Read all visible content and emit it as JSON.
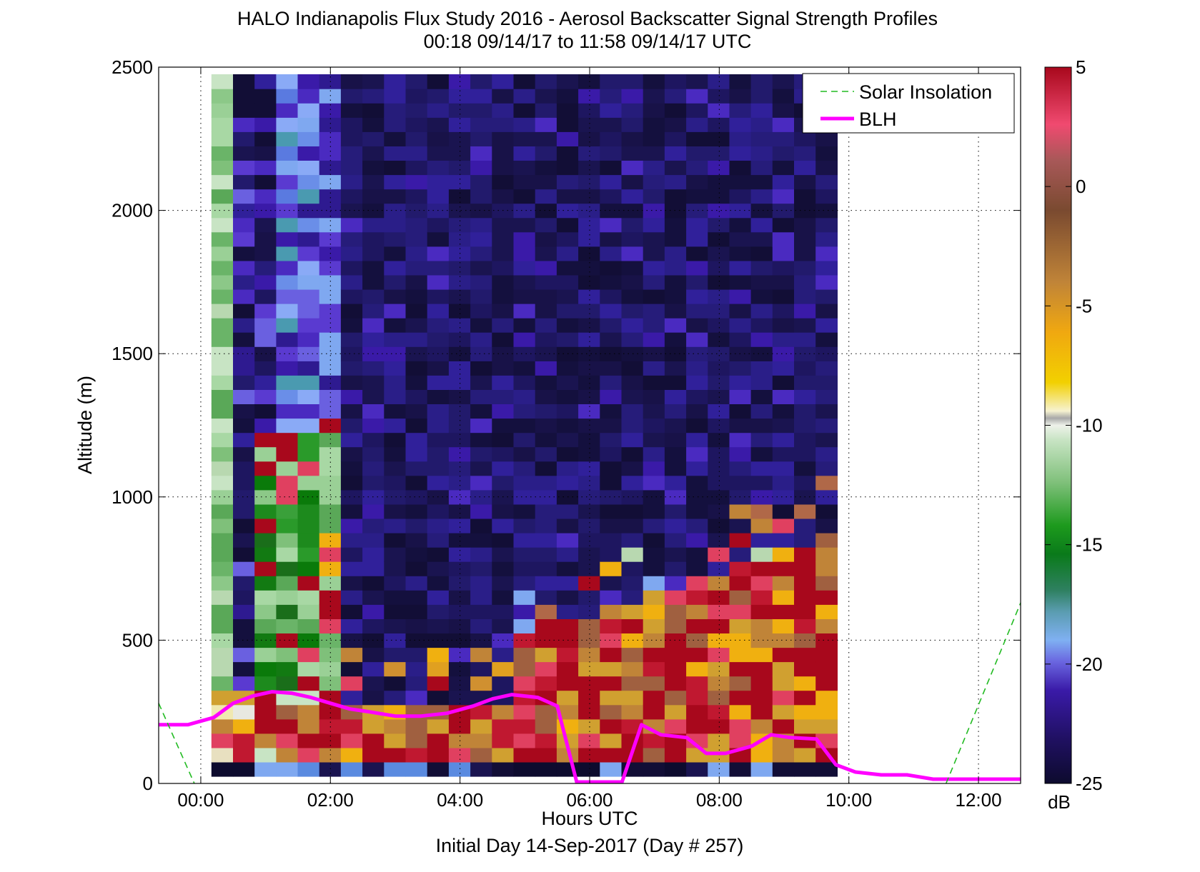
{
  "chart_data": {
    "type": "heatmap",
    "title": "HALO Indianapolis Flux Study 2016 - Aerosol Backscatter Signal Strength Profiles",
    "subtitle": "00:18 09/14/17 to 11:58 09/14/17  UTC",
    "xlabel": "Hours UTC",
    "xlabel2": "Initial Day 14-Sep-2017 (Day # 257)",
    "ylabel": "Altitude (m)",
    "xlim": [
      -0.65,
      12.65
    ],
    "ylim": [
      0,
      2500
    ],
    "x_ticks": [
      0,
      2,
      4,
      6,
      8,
      10,
      12
    ],
    "x_tick_labels": [
      "00:00",
      "02:00",
      "04:00",
      "06:00",
      "08:00",
      "10:00",
      "12:00"
    ],
    "y_ticks": [
      0,
      500,
      1000,
      1500,
      2000,
      2500
    ],
    "y_tick_labels": [
      "0",
      "500",
      "1000",
      "1500",
      "2000",
      "2500"
    ],
    "grid": true,
    "colorbar": {
      "label": "dB",
      "range": [
        -25,
        5
      ],
      "ticks": [
        5,
        0,
        -5,
        -10,
        -15,
        -20,
        -25
      ],
      "tick_labels": [
        "5",
        "0",
        "-5",
        "-10",
        "-15",
        "-20",
        "-25"
      ]
    },
    "legend": {
      "placement": "top-right",
      "entries": [
        "Solar Insolation",
        "BLH"
      ]
    },
    "colors": {
      "blh": "#ff00ff",
      "solar": "#22bb22",
      "background_signal": "#1a1450"
    },
    "heatmap_grid": {
      "x_start": 0.33,
      "x_step": 0.333,
      "columns": 29,
      "y_start": 50,
      "y_step": 50,
      "rows": 49
    },
    "series": [
      {
        "name": "BLH",
        "x": [
          -0.65,
          -0.2,
          0.2,
          0.5,
          0.8,
          1.1,
          1.4,
          1.7,
          2.0,
          2.3,
          2.6,
          3.0,
          3.4,
          3.8,
          4.2,
          4.5,
          4.8,
          5.2,
          5.5,
          5.8,
          6.1,
          6.5,
          6.8,
          7.1,
          7.5,
          7.8,
          8.1,
          8.5,
          8.8,
          9.1,
          9.5,
          9.8,
          10.1,
          10.5,
          10.9,
          11.3,
          11.7,
          12.1,
          12.65
        ],
        "y": [
          205,
          205,
          230,
          280,
          305,
          320,
          315,
          300,
          280,
          260,
          250,
          235,
          235,
          245,
          270,
          295,
          310,
          300,
          270,
          5,
          5,
          5,
          205,
          170,
          160,
          105,
          105,
          130,
          170,
          160,
          155,
          65,
          40,
          30,
          30,
          15,
          15,
          15,
          15
        ]
      },
      {
        "name": "Solar Insolation",
        "segments": [
          {
            "x": [
              -0.65,
              -0.1
            ],
            "y": [
              280,
              0
            ]
          },
          {
            "x": [
              11.5,
              12.65
            ],
            "y": [
              0,
              630
            ]
          }
        ]
      }
    ]
  }
}
